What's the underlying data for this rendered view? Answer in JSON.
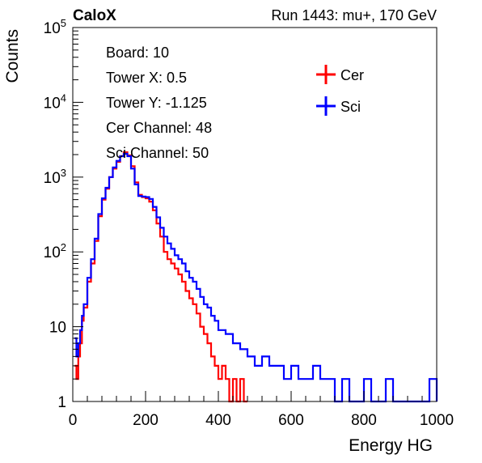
{
  "chart_data": {
    "type": "histogram",
    "header": {
      "left": "CaloX",
      "right": "Run 1443: mu+, 170 GeV"
    },
    "xlabel": "Energy HG",
    "ylabel": "Counts",
    "xlim": [
      0,
      1000
    ],
    "ylim": [
      1,
      100000
    ],
    "yscale": "log",
    "xticks": [
      {
        "value": 0,
        "label": "0"
      },
      {
        "value": 200,
        "label": "200"
      },
      {
        "value": 400,
        "label": "400"
      },
      {
        "value": 600,
        "label": "600"
      },
      {
        "value": 800,
        "label": "800"
      },
      {
        "value": 1000,
        "label": "1000"
      }
    ],
    "yticks": [
      {
        "value": 1,
        "label": "1"
      },
      {
        "value": 10,
        "label": "10"
      },
      {
        "value": 100,
        "label": "10",
        "exp": "2"
      },
      {
        "value": 1000,
        "label": "10",
        "exp": "3"
      },
      {
        "value": 10000,
        "label": "10",
        "exp": "4"
      },
      {
        "value": 100000,
        "label": "10",
        "exp": "5"
      }
    ],
    "info": [
      "Board: 10",
      "Tower X: 0.5",
      "Tower Y: -1.125",
      "Cer Channel: 48",
      "Sci Channel: 50"
    ],
    "legend": {
      "position": "top-right"
    },
    "series": [
      {
        "name": "Cer",
        "color": "#ff0000",
        "points": [
          [
            5,
            3
          ],
          [
            10,
            2
          ],
          [
            15,
            4
          ],
          [
            20,
            6
          ],
          [
            25,
            12
          ],
          [
            30,
            18
          ],
          [
            40,
            40
          ],
          [
            50,
            70
          ],
          [
            60,
            140
          ],
          [
            70,
            300
          ],
          [
            80,
            500
          ],
          [
            90,
            700
          ],
          [
            100,
            1000
          ],
          [
            110,
            1300
          ],
          [
            120,
            1600
          ],
          [
            130,
            1900
          ],
          [
            140,
            2150
          ],
          [
            150,
            1950
          ],
          [
            160,
            1400
          ],
          [
            170,
            850
          ],
          [
            180,
            580
          ],
          [
            190,
            540
          ],
          [
            200,
            520
          ],
          [
            210,
            470
          ],
          [
            220,
            360
          ],
          [
            230,
            240
          ],
          [
            240,
            160
          ],
          [
            250,
            100
          ],
          [
            260,
            80
          ],
          [
            270,
            70
          ],
          [
            280,
            60
          ],
          [
            290,
            50
          ],
          [
            300,
            40
          ],
          [
            310,
            30
          ],
          [
            320,
            24
          ],
          [
            330,
            20
          ],
          [
            340,
            15
          ],
          [
            350,
            10
          ],
          [
            360,
            8
          ],
          [
            370,
            6
          ],
          [
            380,
            4
          ],
          [
            390,
            3
          ],
          [
            400,
            2
          ],
          [
            410,
            3
          ],
          [
            420,
            2
          ],
          [
            430,
            1
          ],
          [
            440,
            2
          ],
          [
            450,
            1
          ],
          [
            460,
            2
          ],
          [
            470,
            1
          ],
          [
            480,
            1
          ]
        ]
      },
      {
        "name": "Sci",
        "color": "#0000ff",
        "points": [
          [
            5,
            7
          ],
          [
            10,
            4
          ],
          [
            15,
            6
          ],
          [
            20,
            9
          ],
          [
            25,
            14
          ],
          [
            30,
            20
          ],
          [
            40,
            45
          ],
          [
            50,
            80
          ],
          [
            60,
            150
          ],
          [
            70,
            320
          ],
          [
            80,
            520
          ],
          [
            90,
            720
          ],
          [
            100,
            1000
          ],
          [
            110,
            1350
          ],
          [
            120,
            1650
          ],
          [
            130,
            1900
          ],
          [
            140,
            2050
          ],
          [
            150,
            1900
          ],
          [
            160,
            1300
          ],
          [
            170,
            800
          ],
          [
            180,
            560
          ],
          [
            190,
            550
          ],
          [
            200,
            540
          ],
          [
            210,
            510
          ],
          [
            220,
            400
          ],
          [
            230,
            290
          ],
          [
            240,
            210
          ],
          [
            250,
            160
          ],
          [
            260,
            130
          ],
          [
            270,
            110
          ],
          [
            280,
            90
          ],
          [
            290,
            80
          ],
          [
            300,
            70
          ],
          [
            310,
            55
          ],
          [
            320,
            45
          ],
          [
            330,
            40
          ],
          [
            340,
            32
          ],
          [
            350,
            25
          ],
          [
            360,
            20
          ],
          [
            370,
            18
          ],
          [
            380,
            14
          ],
          [
            390,
            12
          ],
          [
            400,
            9
          ],
          [
            420,
            8
          ],
          [
            440,
            6
          ],
          [
            460,
            5
          ],
          [
            480,
            4
          ],
          [
            500,
            3
          ],
          [
            520,
            4
          ],
          [
            540,
            3
          ],
          [
            560,
            3
          ],
          [
            580,
            2
          ],
          [
            600,
            3
          ],
          [
            620,
            2
          ],
          [
            640,
            2
          ],
          [
            660,
            3
          ],
          [
            680,
            2
          ],
          [
            700,
            2
          ],
          [
            720,
            1
          ],
          [
            740,
            2
          ],
          [
            760,
            1
          ],
          [
            780,
            1
          ],
          [
            800,
            2
          ],
          [
            820,
            1
          ],
          [
            840,
            1
          ],
          [
            860,
            2
          ],
          [
            880,
            1
          ],
          [
            900,
            1
          ],
          [
            920,
            1
          ],
          [
            940,
            1
          ],
          [
            960,
            1
          ],
          [
            980,
            2
          ],
          [
            1000,
            1
          ]
        ]
      }
    ]
  }
}
